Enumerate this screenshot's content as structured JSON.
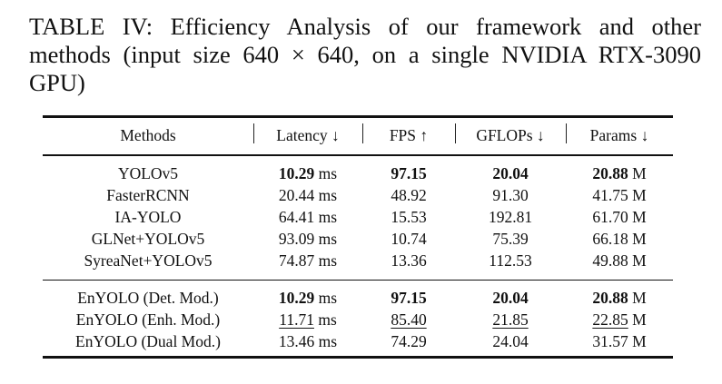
{
  "caption": {
    "line1": "TABLE IV: Efficiency Analysis of our framework and other",
    "line2": "methods (input size 640 × 640, on a single NVIDIA RTX-3090",
    "line3": "GPU)"
  },
  "table": {
    "headers": [
      "Methods",
      "Latency ↓",
      "FPS ↑",
      "GFLOPs ↓",
      "Params ↓"
    ],
    "group1": [
      {
        "method": "YOLOv5",
        "latency": "10.29",
        "latency_unit": " ms",
        "fps": "97.15",
        "gflops": "20.04",
        "params": "20.88",
        "params_unit": " M",
        "bold": true
      },
      {
        "method": "FasterRCNN",
        "latency": "20.44",
        "latency_unit": " ms",
        "fps": "48.92",
        "gflops": "91.30",
        "params": "41.75",
        "params_unit": " M"
      },
      {
        "method": "IA-YOLO",
        "latency": "64.41",
        "latency_unit": " ms",
        "fps": "15.53",
        "gflops": "192.81",
        "params": "61.70",
        "params_unit": " M"
      },
      {
        "method": "GLNet+YOLOv5",
        "latency": "93.09",
        "latency_unit": " ms",
        "fps": "10.74",
        "gflops": "75.39",
        "params": "66.18",
        "params_unit": " M"
      },
      {
        "method": "SyreaNet+YOLOv5",
        "latency": "74.87",
        "latency_unit": " ms",
        "fps": "13.36",
        "gflops": "112.53",
        "params": "49.88",
        "params_unit": " M"
      }
    ],
    "group2": [
      {
        "method": "EnYOLO (Det. Mod.)",
        "latency": "10.29",
        "latency_unit": " ms",
        "fps": "97.15",
        "gflops": "20.04",
        "params": "20.88",
        "params_unit": " M",
        "bold": true
      },
      {
        "method": "EnYOLO (Enh. Mod.)",
        "latency": "11.71",
        "latency_unit": " ms",
        "fps": "85.40",
        "gflops": "21.85",
        "params": "22.85",
        "params_unit": " M",
        "underline": true
      },
      {
        "method": "EnYOLO (Dual Mod.)",
        "latency": "13.46",
        "latency_unit": " ms",
        "fps": "74.29",
        "gflops": "24.04",
        "params": "31.57",
        "params_unit": " M"
      }
    ]
  }
}
